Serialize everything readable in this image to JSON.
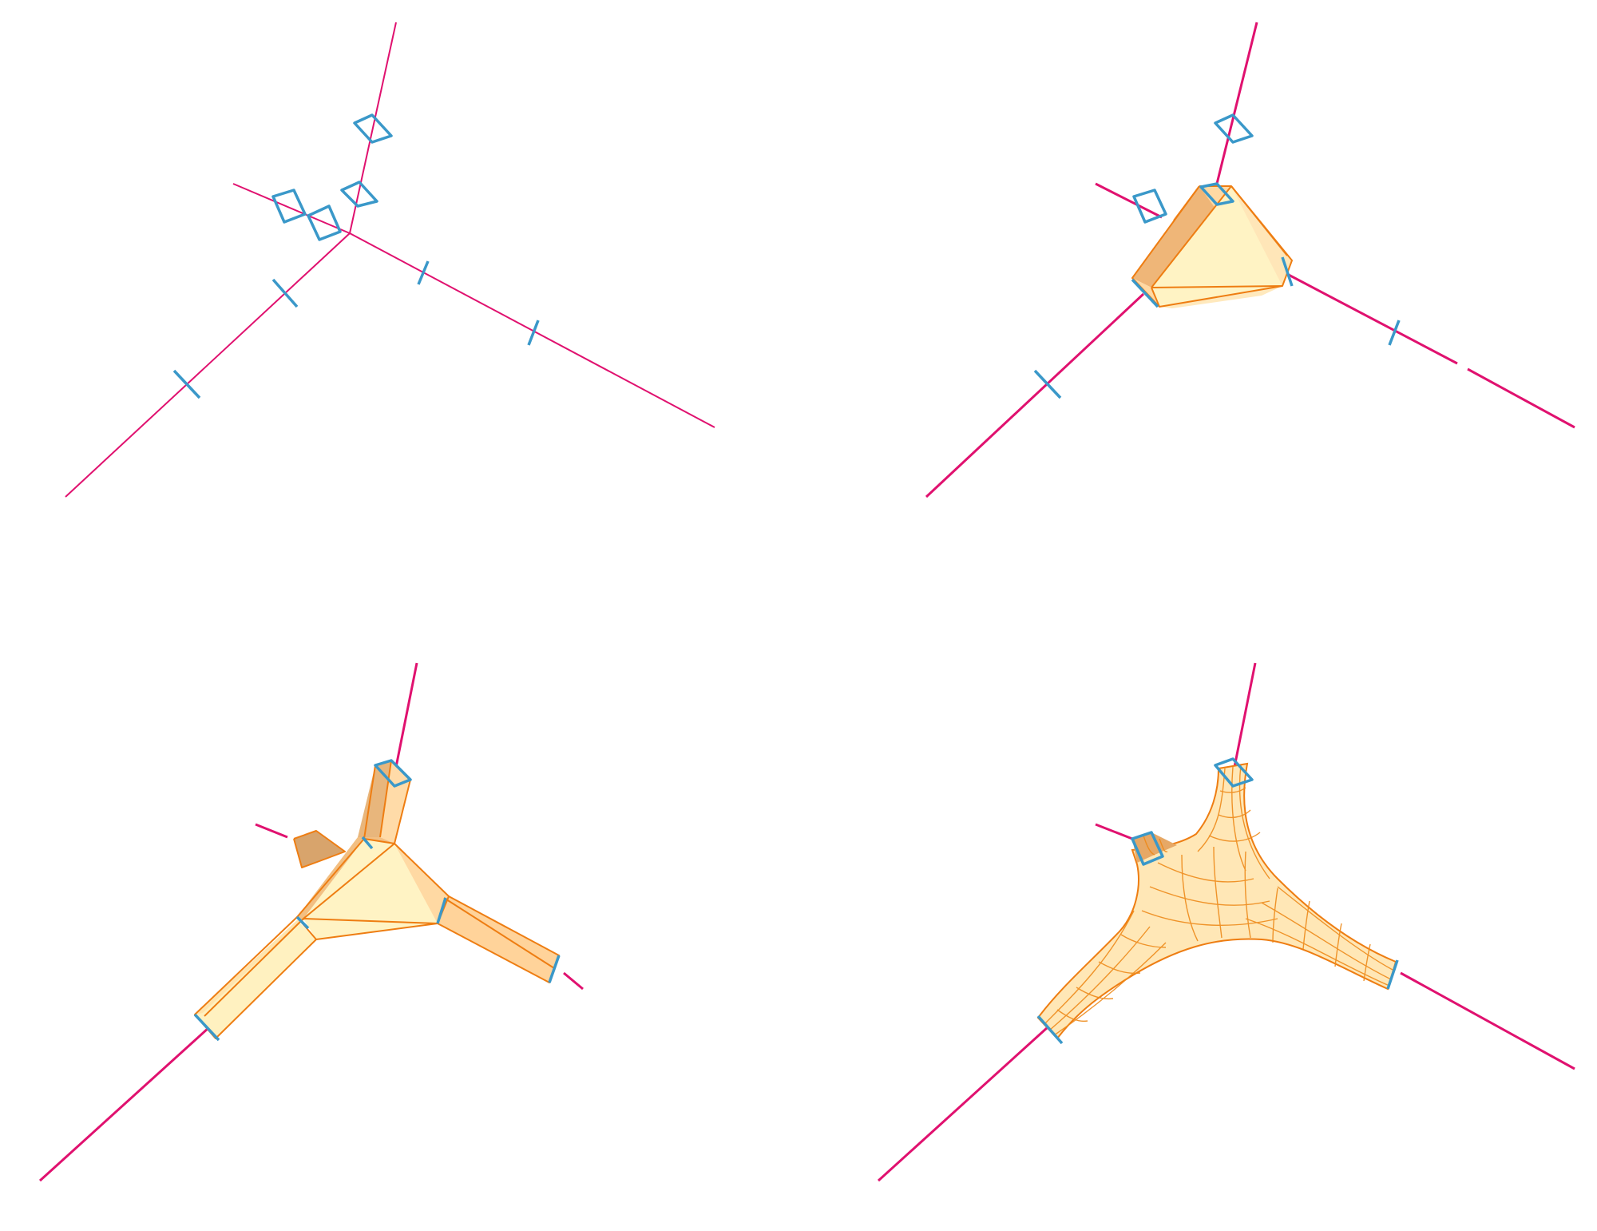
{
  "colors": {
    "background": "#ffffff",
    "skeleton_line": "#e0116f",
    "cross_section": "#3a98c9",
    "surface_light": "#fff3c4",
    "surface_mid": "#ffd9a3",
    "surface_dark": "#efb678",
    "surface_edge": "#ee7d12"
  },
  "panels": [
    {
      "stage": "skeleton-with-profiles"
    },
    {
      "stage": "convex-hull-node"
    },
    {
      "stage": "extruded-branches"
    },
    {
      "stage": "subdivided-mesh"
    }
  ]
}
